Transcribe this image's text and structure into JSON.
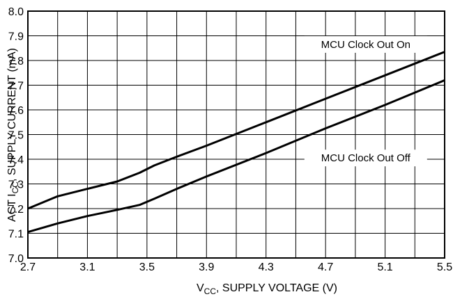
{
  "chart_data": {
    "type": "line",
    "xlabel_main": "V",
    "xlabel_sub": "CC",
    "xlabel_rest": ", SUPPLY VOLTAGE (V)",
    "ylabel_main": "ACT I",
    "ylabel_sub": "CC",
    "ylabel_rest": ", SUPPLY CURRENT (mA)",
    "xlim": [
      2.7,
      5.5
    ],
    "ylim": [
      7.0,
      8.0
    ],
    "x_ticks": [
      2.7,
      3.1,
      3.5,
      3.9,
      4.3,
      4.7,
      5.1,
      5.5
    ],
    "x_tick_labels": [
      "2.7",
      "3.1",
      "3.5",
      "3.9",
      "4.3",
      "4.7",
      "5.1",
      "5.5"
    ],
    "y_ticks": [
      7.0,
      7.1,
      7.2,
      7.3,
      7.4,
      7.5,
      7.6,
      7.7,
      7.8,
      7.9,
      8.0
    ],
    "y_tick_labels": [
      "7.0",
      "7.1",
      "7.2",
      "7.3",
      "7.4",
      "7.5",
      "7.6",
      "7.7",
      "7.8",
      "7.9",
      "8.0"
    ],
    "grid": true,
    "series": [
      {
        "name": "MCU Clock Out On",
        "x": [
          2.7,
          2.9,
          3.1,
          3.3,
          3.45,
          3.55,
          3.7,
          3.9,
          4.3,
          4.7,
          5.1,
          5.5
        ],
        "y": [
          7.2,
          7.25,
          7.28,
          7.31,
          7.345,
          7.375,
          7.41,
          7.455,
          7.55,
          7.645,
          7.74,
          7.835
        ]
      },
      {
        "name": "MCU Clock Out Off",
        "x": [
          2.7,
          2.9,
          3.1,
          3.3,
          3.45,
          3.55,
          3.7,
          3.9,
          4.3,
          4.7,
          5.1,
          5.5
        ],
        "y": [
          7.105,
          7.14,
          7.17,
          7.195,
          7.215,
          7.24,
          7.28,
          7.33,
          7.425,
          7.525,
          7.62,
          7.72
        ]
      }
    ]
  }
}
